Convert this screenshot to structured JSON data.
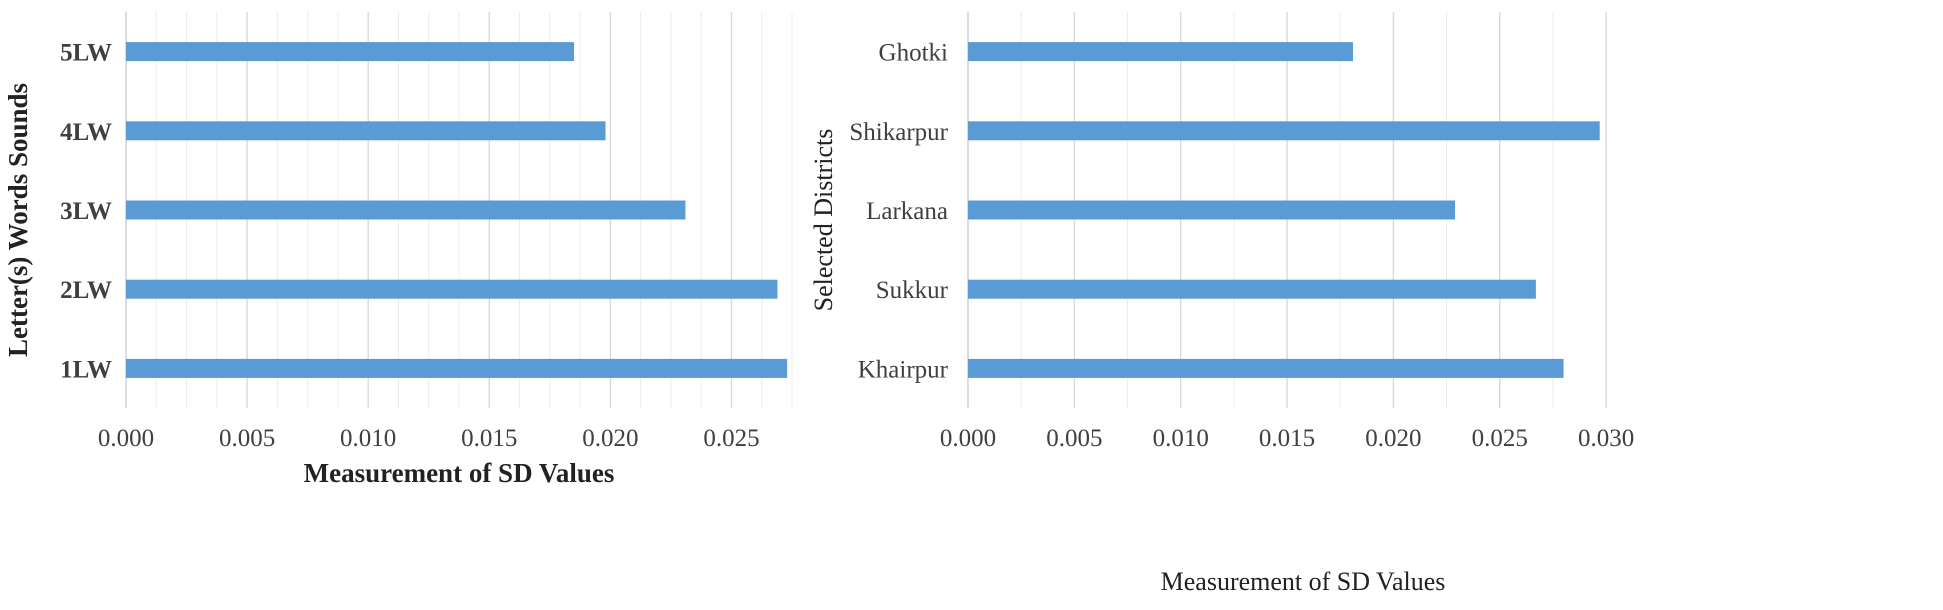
{
  "chart_data": [
    {
      "type": "bar",
      "orientation": "horizontal",
      "categories": [
        "1LW",
        "2LW",
        "3LW",
        "4LW",
        "5LW"
      ],
      "values": [
        0.0273,
        0.0269,
        0.0231,
        0.0198,
        0.0185
      ],
      "xlabel": "Measurement of SD Values",
      "ylabel": "Letter(s) Words Sounds",
      "xlim": [
        0,
        0.0275
      ],
      "xticks": [
        "0.000",
        "0.005",
        "0.010",
        "0.015",
        "0.020",
        "0.025"
      ],
      "xtick_values": [
        0,
        0.005,
        0.01,
        0.015,
        0.02,
        0.025
      ],
      "grid": "vertical",
      "bar_color": "#5B9BD5"
    },
    {
      "type": "bar",
      "orientation": "horizontal",
      "categories": [
        "Khairpur",
        "Sukkur",
        "Larkana",
        "Shikarpur",
        "Ghotki"
      ],
      "values": [
        0.028,
        0.0267,
        0.0229,
        0.0297,
        0.0181
      ],
      "xlabel": "Measurement of SD Values",
      "ylabel": "Selected Districts",
      "xlim": [
        0,
        0.0315
      ],
      "xticks": [
        "0.000",
        "0.005",
        "0.010",
        "0.015",
        "0.020",
        "0.025",
        "0.030"
      ],
      "xtick_values": [
        0,
        0.005,
        0.01,
        0.015,
        0.02,
        0.025,
        0.03
      ],
      "grid": "vertical",
      "bar_color": "#5B9BD5"
    }
  ]
}
